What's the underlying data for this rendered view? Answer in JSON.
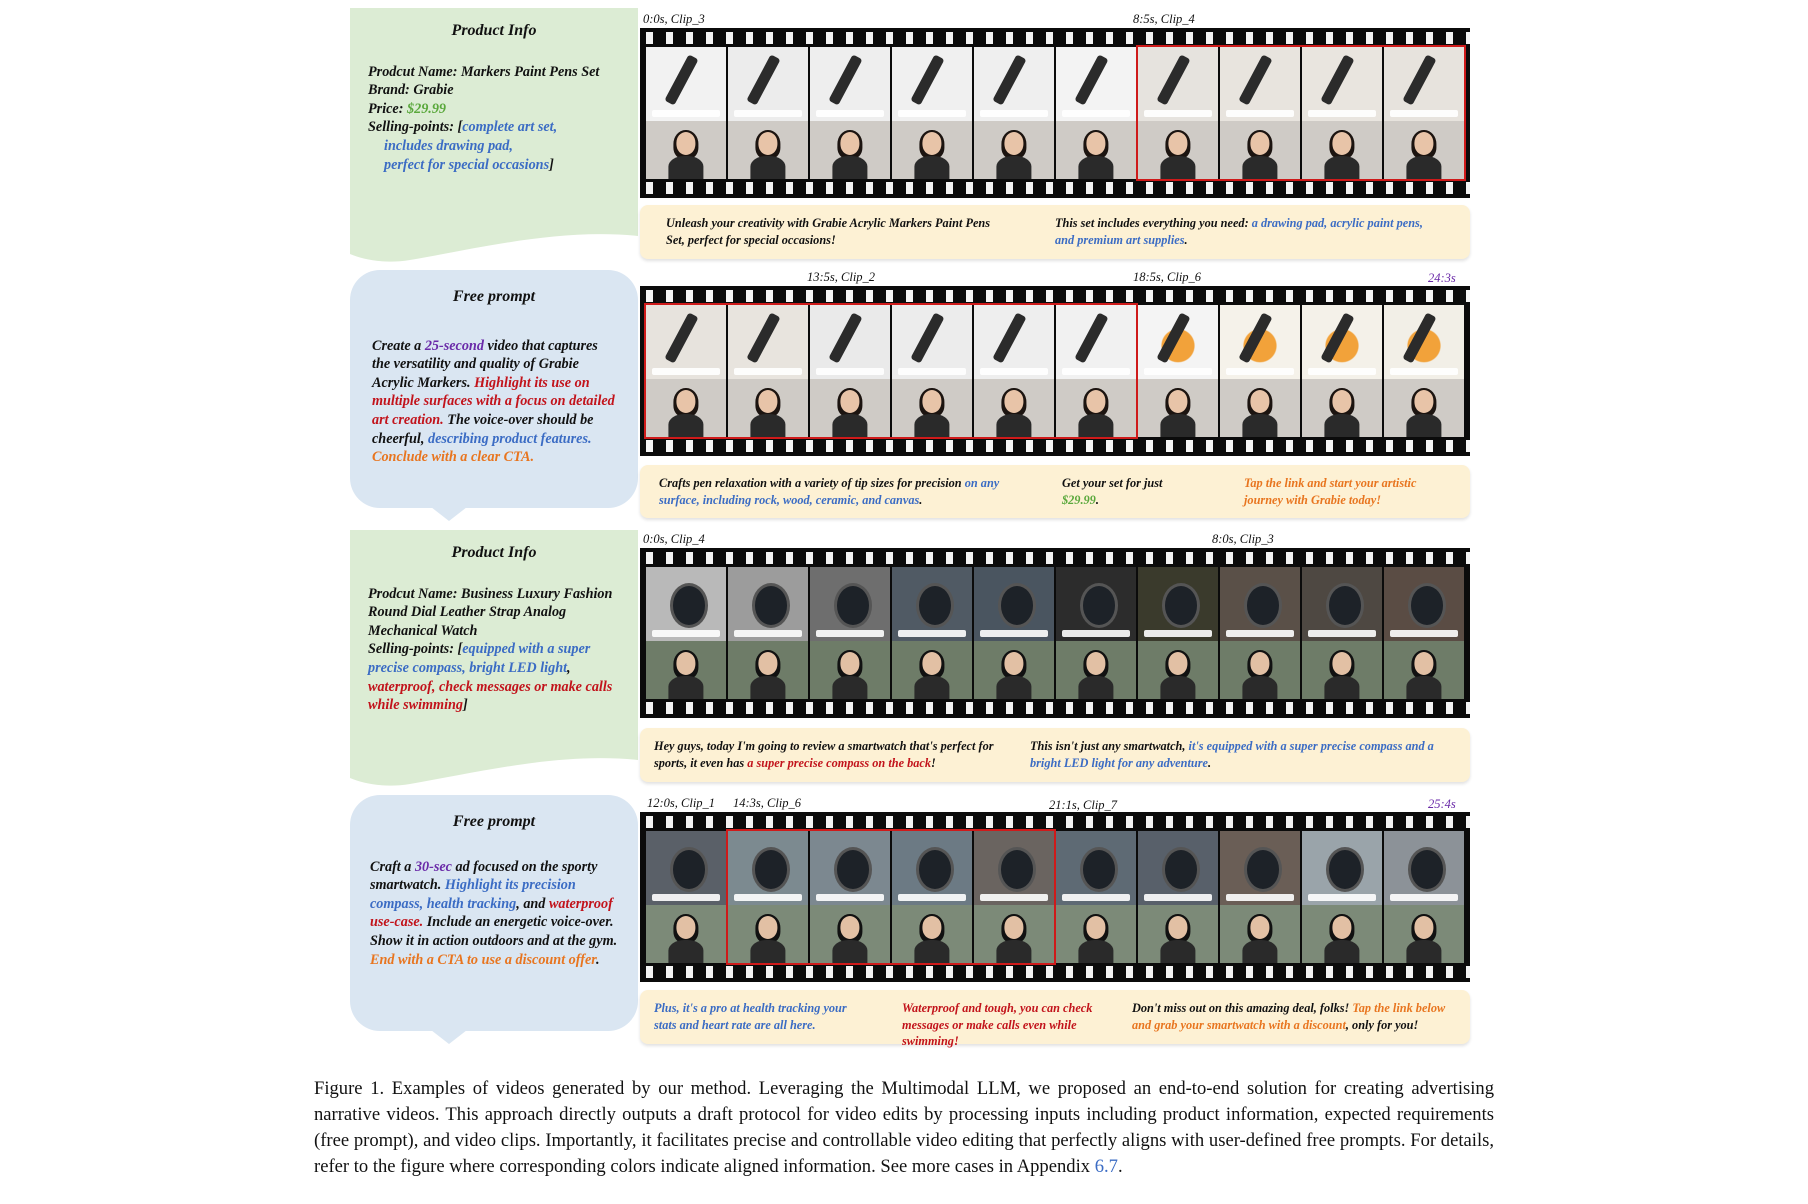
{
  "rows": [
    {
      "panel": {
        "kind": "product-info",
        "title": "Product Info",
        "lines": [
          {
            "label": "Prodcut Name: ",
            "value": "Markers Paint Pens Set"
          },
          {
            "label": "Brand: ",
            "value": "Grabie"
          },
          {
            "label": "Price: ",
            "value": "$29.99"
          }
        ],
        "selling_label": "Selling-points: [",
        "selling_points": [
          "complete art set,",
          "includes drawing pad,",
          "perfect for special occasions"
        ],
        "selling_close": "]"
      },
      "timestamps": [
        {
          "text": "0:0s, Clip_3"
        },
        {
          "text": "8:5s, Clip_4"
        }
      ],
      "captions": [
        {
          "parts": [
            {
              "text": "Unleash your creativity with Grabie Acrylic Markers Paint Pens Set, perfect for special occasions!",
              "color": "black"
            }
          ]
        },
        {
          "parts": [
            {
              "text": "This set includes everything you need: ",
              "color": "black"
            },
            {
              "text": "a drawing pad, acrylic paint pens, and premium art supplies",
              "color": "blue"
            },
            {
              "text": ".",
              "color": "black"
            }
          ]
        }
      ]
    },
    {
      "panel": {
        "kind": "free-prompt",
        "title": "Free prompt",
        "parts": [
          {
            "text": "Create a ",
            "color": "black"
          },
          {
            "text": "25-second",
            "color": "purple"
          },
          {
            "text": " video that captures the versatility and quality of Grabie Acrylic Markers. ",
            "color": "black"
          },
          {
            "text": "Highlight its use on multiple surfaces with a focus on detailed art creation.",
            "color": "red"
          },
          {
            "text": " The voice-over should be cheerful, ",
            "color": "black"
          },
          {
            "text": "describing product features.",
            "color": "blue"
          },
          {
            "text": " ",
            "color": "black"
          },
          {
            "text": "Conclude with a clear CTA.",
            "color": "orange"
          }
        ]
      },
      "timestamps": [
        {
          "text": "13:5s, Clip_2"
        },
        {
          "text": "18:5s, Clip_6"
        },
        {
          "text": "24:3s",
          "purple": true
        }
      ],
      "captions": [
        {
          "parts": [
            {
              "text": "Crafts pen relaxation with a variety of tip sizes for precision ",
              "color": "black"
            },
            {
              "text": "on any surface, including rock, wood, ceramic, and canvas",
              "color": "blue"
            },
            {
              "text": ".",
              "color": "black"
            }
          ]
        },
        {
          "parts": [
            {
              "text": "Get your set for just ",
              "color": "black"
            },
            {
              "text": "$29.99",
              "color": "green"
            },
            {
              "text": ".",
              "color": "black"
            }
          ]
        },
        {
          "parts": [
            {
              "text": "Tap the link and start your artistic journey with Grabie today!",
              "color": "orange"
            }
          ]
        }
      ]
    },
    {
      "panel": {
        "kind": "product-info",
        "title": "Product Info",
        "lines": [
          {
            "label": "Prodcut Name: ",
            "value": "Business Luxury Fashion Round Dial Leather Strap Analog Mechanical Watch"
          }
        ],
        "selling_label": "Selling-points: [",
        "selling_parts": [
          {
            "text": "equipped with a super precise compass, bright LED light",
            "color": "blue"
          },
          {
            "text": ", ",
            "color": "black"
          },
          {
            "text": "waterproof, check messages or make calls while swimming",
            "color": "red"
          },
          {
            "text": "]",
            "color": "black"
          }
        ]
      },
      "timestamps": [
        {
          "text": "0:0s, Clip_4"
        },
        {
          "text": "8:0s, Clip_3"
        }
      ],
      "captions": [
        {
          "parts": [
            {
              "text": "Hey guys, today I'm going to review a smartwatch that's perfect for sports, it even has ",
              "color": "black"
            },
            {
              "text": "a super precise compass on the back",
              "color": "red"
            },
            {
              "text": "!",
              "color": "black"
            }
          ]
        },
        {
          "parts": [
            {
              "text": "This isn't just any smartwatch, ",
              "color": "black"
            },
            {
              "text": "it's equipped with a super precise compass and a bright LED light for any adventure",
              "color": "blue"
            },
            {
              "text": ".",
              "color": "black"
            }
          ]
        }
      ]
    },
    {
      "panel": {
        "kind": "free-prompt",
        "title": "Free prompt",
        "parts": [
          {
            "text": "Craft a ",
            "color": "black"
          },
          {
            "text": "30-sec",
            "color": "purple"
          },
          {
            "text": " ad focused on the sporty smartwatch. ",
            "color": "black"
          },
          {
            "text": "Highlight its precision compass, health tracking",
            "color": "blue"
          },
          {
            "text": ", and ",
            "color": "black"
          },
          {
            "text": "waterproof use-case.",
            "color": "red"
          },
          {
            "text": " Include an energetic voice-over. Show it in action outdoors and at the gym. ",
            "color": "black"
          },
          {
            "text": "End with a CTA to use a discount offer",
            "color": "orange"
          },
          {
            "text": ".",
            "color": "black"
          }
        ]
      },
      "timestamps": [
        {
          "text": "12:0s, Clip_1"
        },
        {
          "text": "14:3s, Clip_6"
        },
        {
          "text": "21:1s, Clip_7"
        },
        {
          "text": "25:4s",
          "purple": true
        }
      ],
      "captions": [
        {
          "parts": [
            {
              "text": "Plus, it's a pro at health tracking your stats and heart rate are all here.",
              "color": "blue"
            }
          ]
        },
        {
          "parts": [
            {
              "text": "Waterproof and tough, you can check messages or make calls even while swimming!",
              "color": "red"
            }
          ]
        },
        {
          "parts": [
            {
              "text": "Don't miss out on this amazing deal, folks! ",
              "color": "black"
            },
            {
              "text": "Tap the link below and grab your smartwatch with a discount",
              "color": "orange"
            },
            {
              "text": ", only for you!",
              "color": "black"
            }
          ]
        }
      ]
    }
  ],
  "figure_caption": {
    "text": "Figure 1.  Examples of videos generated by our method.  Leveraging the Multimodal LLM, we proposed an end-to-end solution for creating advertising narrative videos. This approach directly outputs a draft protocol for video edits by processing inputs including product information, expected requirements (free prompt), and video clips.  Importantly, it facilitates precise and controllable video editing that perfectly aligns with user-defined free prompts.  For details, refer to the figure where corresponding colors indicate aligned information.  See more cases in Appendix ",
    "ref": "6.7",
    "end": "."
  },
  "colors": {
    "blue": "#3b6cc4",
    "red": "#c2131b",
    "orange": "#e8751f",
    "green": "#5aa83c",
    "purple": "#6a2aa8",
    "panel_green": "#dcecd4",
    "panel_blue": "#dae6f2",
    "caption_bg": "#fdf1d4",
    "highlight_border": "#cf1a1a"
  }
}
